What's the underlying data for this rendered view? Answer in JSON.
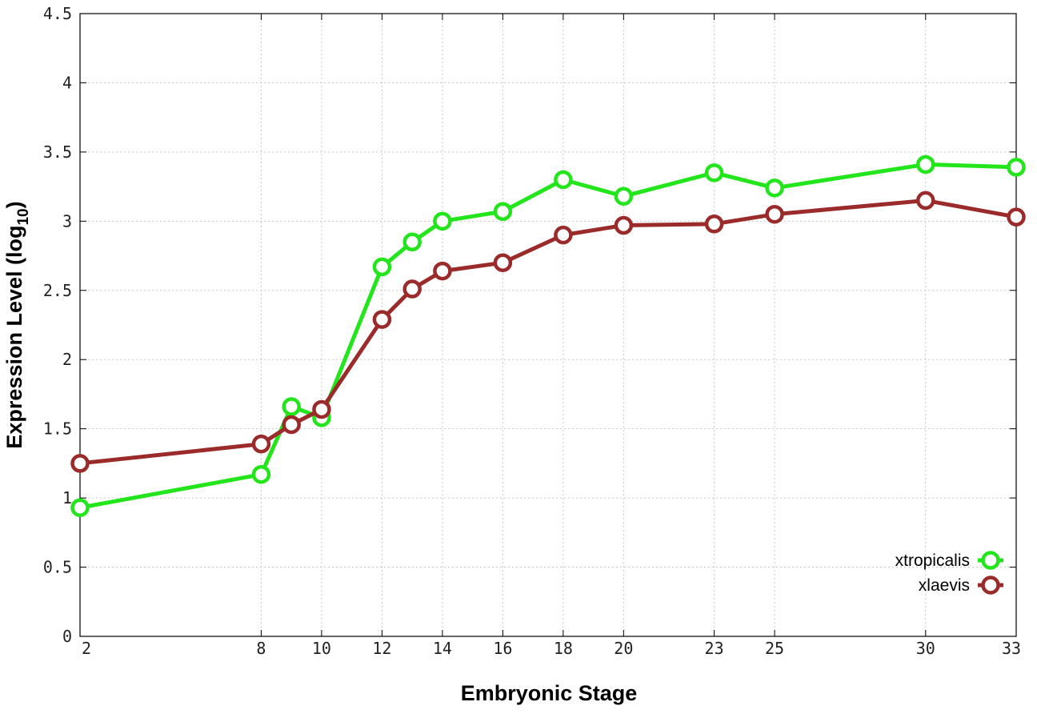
{
  "chart_data": {
    "type": "line",
    "title": "",
    "xlabel": "Embryonic Stage",
    "ylabel_main": "Expression Level (log",
    "ylabel_sub": "10",
    "ylabel_close": ")",
    "xlim": [
      2,
      33
    ],
    "ylim": [
      0,
      4.5
    ],
    "x_ticks": [
      2,
      8,
      10,
      12,
      14,
      16,
      18,
      20,
      23,
      25,
      30,
      33
    ],
    "x_tick_labels": [
      "2",
      "8",
      "10",
      "12",
      "14",
      "16",
      "18",
      "20",
      "23",
      "25",
      "30",
      "33"
    ],
    "y_ticks": [
      0,
      0.5,
      1,
      1.5,
      2,
      2.5,
      3,
      3.5,
      4,
      4.5
    ],
    "y_tick_labels": [
      "0",
      "0.5",
      "1",
      "1.5",
      "2",
      "2.5",
      "3",
      "3.5",
      "4",
      "4.5"
    ],
    "grid": true,
    "legend_position": "bottom-right",
    "x": [
      2,
      8,
      9,
      10,
      12,
      13,
      14,
      16,
      18,
      20,
      23,
      25,
      30,
      33
    ],
    "series": [
      {
        "name": "xtropicalis",
        "color": "#22e51b",
        "values": [
          0.93,
          1.17,
          1.66,
          1.58,
          2.67,
          2.85,
          3.0,
          3.07,
          3.3,
          3.18,
          3.35,
          3.24,
          3.41,
          3.39
        ]
      },
      {
        "name": "xlaevis",
        "color": "#9b2b2b",
        "values": [
          1.25,
          1.39,
          1.53,
          1.64,
          2.29,
          2.51,
          2.64,
          2.7,
          2.9,
          2.97,
          2.98,
          3.05,
          3.15,
          3.03
        ]
      }
    ]
  }
}
